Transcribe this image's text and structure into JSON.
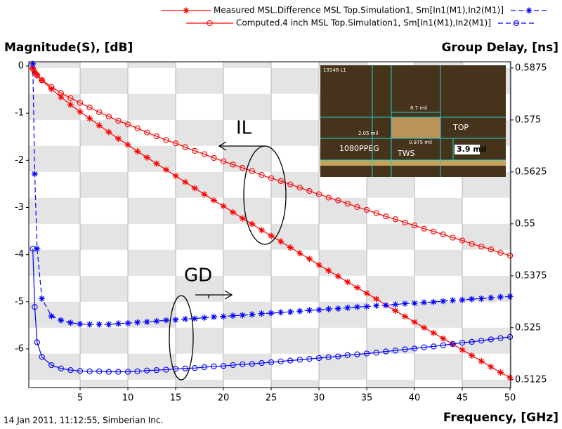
{
  "chart_data": {
    "type": "line",
    "y_label": "Magnitude(S), [dB]",
    "y2_label": "Group Delay, [ns]",
    "x_label": "Frequency, [GHz]",
    "footer": "14 Jan 2011, 11:12:55, Simberian Inc.",
    "annotations": [
      "IL",
      "GD"
    ],
    "inset": {
      "labels": [
        "19146 L1",
        "8.7 mil",
        "2.05 mil",
        "0.975 mil",
        "TOP",
        "1080PPEG",
        "TWS",
        "3.9 mil"
      ]
    },
    "xlim": [
      -0.37,
      50.07
    ],
    "xticks": [
      5,
      10,
      15,
      20,
      25,
      30,
      35,
      40,
      45,
      50
    ],
    "ylim": [
      -6.82,
      0.09
    ],
    "yticks": [
      0,
      -1,
      -2,
      -3,
      -4,
      -5,
      -6
    ],
    "y2lim": [
      0.5106,
      0.589
    ],
    "y2ticks": [
      0.5125,
      0.525,
      0.5375,
      0.55,
      0.5625,
      0.575,
      0.5875
    ],
    "grid": true,
    "x": [
      0.05,
      0.25,
      0.5,
      1,
      2,
      3,
      4,
      5,
      6,
      7,
      8,
      9,
      10,
      11,
      12,
      13,
      14,
      15,
      16,
      17,
      18,
      19,
      20,
      21,
      22,
      23,
      24,
      25,
      26,
      27,
      28,
      29,
      30,
      31,
      32,
      33,
      34,
      35,
      36,
      37,
      38,
      39,
      40,
      41,
      42,
      43,
      44,
      45,
      46,
      47,
      48,
      49,
      50
    ],
    "series": [
      {
        "name": "Measured MSL.Difference MSL Top.Simulation1, Sm[In1(M1),In2(M1)]",
        "marker": "star",
        "traces": [
          {
            "color": "#ff0000",
            "values": [
              -0.05,
              -0.13,
              -0.19,
              -0.3,
              -0.49,
              -0.66,
              -0.82,
              -0.97,
              -1.11,
              -1.26,
              -1.4,
              -1.54,
              -1.67,
              -1.81,
              -1.94,
              -2.07,
              -2.2,
              -2.33,
              -2.46,
              -2.59,
              -2.72,
              -2.85,
              -2.97,
              -3.1,
              -3.23,
              -3.35,
              -3.48,
              -3.6,
              -3.72,
              -3.85,
              -3.97,
              -4.09,
              -4.22,
              -4.34,
              -4.46,
              -4.58,
              -4.7,
              -4.82,
              -4.94,
              -5.07,
              -5.19,
              -5.31,
              -5.43,
              -5.55,
              -5.66,
              -5.78,
              -5.9,
              -6.02,
              -6.14,
              -6.26,
              -6.38,
              -6.5,
              -6.61
            ]
          },
          {
            "color": "#0000ff",
            "axis": "y2",
            "dashed": true,
            "values": [
              0.5885,
              0.562,
              0.544,
              0.532,
              0.5278,
              0.5268,
              0.5262,
              0.5259,
              0.5258,
              0.5258,
              0.5258,
              0.526,
              0.5261,
              0.5263,
              0.5264,
              0.5266,
              0.5268,
              0.5269,
              0.5271,
              0.5272,
              0.5274,
              0.5276,
              0.5277,
              0.5279,
              0.528,
              0.5282,
              0.5284,
              0.5285,
              0.5287,
              0.5288,
              0.529,
              0.5292,
              0.5293,
              0.5295,
              0.5296,
              0.5298,
              0.53,
              0.5301,
              0.5303,
              0.5304,
              0.5306,
              0.5308,
              0.5309,
              0.5311,
              0.5312,
              0.5314,
              0.5316,
              0.5317,
              0.5319,
              0.532,
              0.5322,
              0.5324,
              0.5325
            ]
          }
        ]
      },
      {
        "name": "Computed.4 inch MSL Top.Simulation1, Sm[In1(M1),In2(M1)]",
        "marker": "circle",
        "traces": [
          {
            "color": "#ff0000",
            "values": [
              -0.06,
              -0.14,
              -0.2,
              -0.3,
              -0.44,
              -0.57,
              -0.68,
              -0.78,
              -0.88,
              -0.98,
              -1.07,
              -1.16,
              -1.24,
              -1.32,
              -1.41,
              -1.49,
              -1.57,
              -1.64,
              -1.72,
              -1.8,
              -1.87,
              -1.95,
              -2.02,
              -2.09,
              -2.16,
              -2.23,
              -2.31,
              -2.38,
              -2.44,
              -2.51,
              -2.58,
              -2.65,
              -2.72,
              -2.79,
              -2.85,
              -2.92,
              -2.99,
              -3.05,
              -3.12,
              -3.19,
              -3.25,
              -3.32,
              -3.38,
              -3.45,
              -3.51,
              -3.57,
              -3.64,
              -3.7,
              -3.77,
              -3.83,
              -3.89,
              -3.96,
              -4.02
            ]
          },
          {
            "color": "#0000ff",
            "axis": "y2",
            "values": [
              0.544,
              0.53,
              0.5215,
              0.518,
              0.516,
              0.5152,
              0.5148,
              0.5146,
              0.5145,
              0.5145,
              0.5144,
              0.5144,
              0.5144,
              0.5145,
              0.5147,
              0.5148,
              0.5149,
              0.5151,
              0.5152,
              0.5153,
              0.5155,
              0.5157,
              0.5158,
              0.516,
              0.5162,
              0.5163,
              0.5165,
              0.5167,
              0.5169,
              0.5171,
              0.5173,
              0.5175,
              0.5177,
              0.5179,
              0.5181,
              0.5184,
              0.5186,
              0.5188,
              0.519,
              0.5193,
              0.5195,
              0.5198,
              0.52,
              0.5203,
              0.5205,
              0.5208,
              0.5211,
              0.5214,
              0.5216,
              0.5219,
              0.5222,
              0.5225,
              0.5228
            ]
          }
        ]
      }
    ]
  }
}
